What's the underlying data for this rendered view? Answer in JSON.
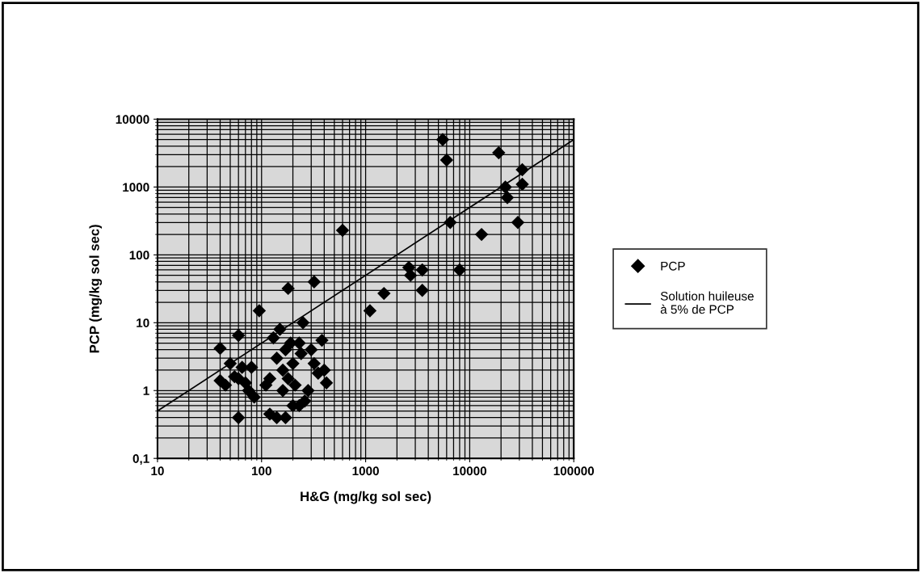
{
  "chart_data": {
    "type": "scatter",
    "xlabel": "H&G (mg/kg sol sec)",
    "ylabel": "PCP (mg/kg sol sec)",
    "log": "xy",
    "grid": true,
    "legend": "right",
    "xlim": [
      10,
      100000
    ],
    "xticks": [
      10,
      100,
      1000,
      10000,
      100000
    ],
    "ylim": [
      0.1,
      10000
    ],
    "yticks": [
      {
        "value": 0.1,
        "label": "0,1"
      },
      1,
      10,
      100,
      1000,
      10000
    ],
    "series": [
      {
        "name": "PCP",
        "marker": "diamond",
        "color": "#000000",
        "x": [
          5500,
          6000,
          19000,
          32000,
          32000,
          22000,
          23000,
          29000,
          6500,
          13000,
          8000,
          600,
          2600,
          2700,
          3500,
          3500,
          1500,
          1100,
          320,
          180,
          95,
          40,
          40,
          45,
          50,
          55,
          60,
          60,
          65,
          70,
          75,
          60,
          80,
          85,
          120,
          140,
          170,
          130,
          150,
          140,
          160,
          170,
          180,
          200,
          210,
          230,
          240,
          250,
          260,
          280,
          300,
          320,
          350,
          380,
          400,
          420,
          200,
          230,
          190,
          120,
          110,
          160
        ],
        "values": [
          5000,
          2500,
          3200,
          1800,
          1100,
          1000,
          700,
          300,
          300,
          200,
          60,
          230,
          65,
          50,
          60,
          30,
          27,
          15,
          40,
          32,
          15,
          4.2,
          1.4,
          1.2,
          2.5,
          1.6,
          6.5,
          1.5,
          2.2,
          1.3,
          1.0,
          0.4,
          2.2,
          0.8,
          0.45,
          0.4,
          0.4,
          6,
          8,
          3,
          2,
          4,
          1.5,
          2.5,
          1.2,
          5,
          3.5,
          10,
          0.7,
          1,
          4,
          2.5,
          1.8,
          5.5,
          2,
          1.3,
          0.6,
          0.6,
          5,
          1.5,
          1.2,
          1.0
        ]
      },
      {
        "name": "Solution huileuse\nà 5% de PCP",
        "type": "line",
        "marker": "none",
        "line_style": "solid",
        "color": "#000000",
        "x": [
          10,
          100000
        ],
        "values": [
          0.5,
          5000
        ]
      }
    ]
  }
}
